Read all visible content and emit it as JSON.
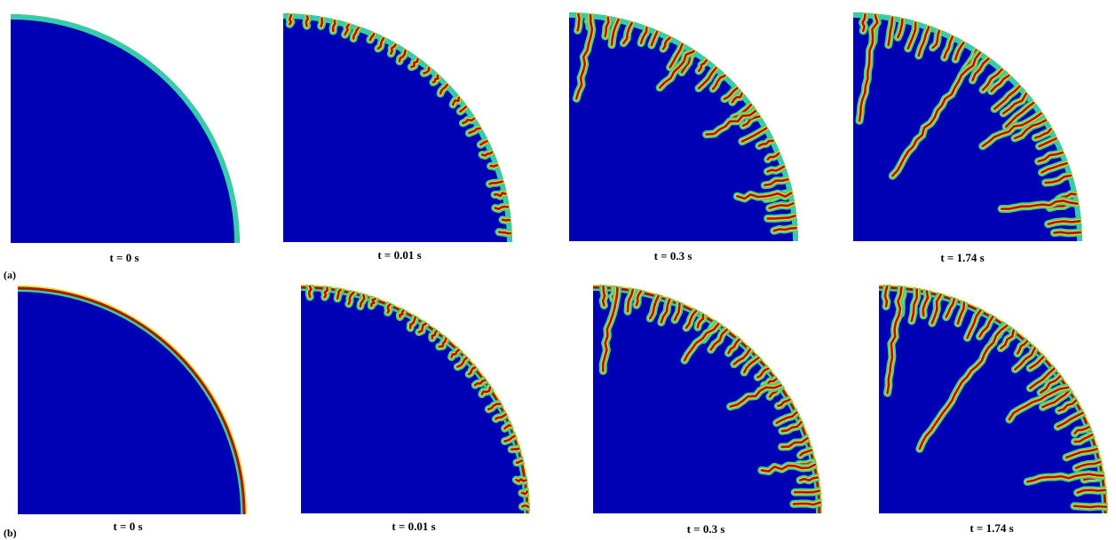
{
  "figure": {
    "rows": [
      {
        "label": "(a)",
        "panels": [
          {
            "caption": "t = 0 s",
            "stage": 0,
            "tint": "cyan"
          },
          {
            "caption": "t = 0.01 s",
            "stage": 1,
            "tint": "cyan"
          },
          {
            "caption": "t = 0.3 s",
            "stage": 2,
            "tint": "cyan"
          },
          {
            "caption": "t = 1.74 s",
            "stage": 3,
            "tint": "cyan"
          }
        ]
      },
      {
        "label": "(b)",
        "panels": [
          {
            "caption": "t = 0 s",
            "stage": 0,
            "tint": "red"
          },
          {
            "caption": "t = 0.01 s",
            "stage": 1,
            "tint": "red"
          },
          {
            "caption": "t = 0.3 s",
            "stage": 2,
            "tint": "red"
          },
          {
            "caption": "t = 1.74 s",
            "stage": 3,
            "tint": "red"
          }
        ]
      }
    ],
    "colors": {
      "background": "#0000b4",
      "halo": "#3fd08a",
      "edge": "#e8e020",
      "core_red": "#b01010",
      "rim_cyan": "#30c8c8"
    }
  }
}
